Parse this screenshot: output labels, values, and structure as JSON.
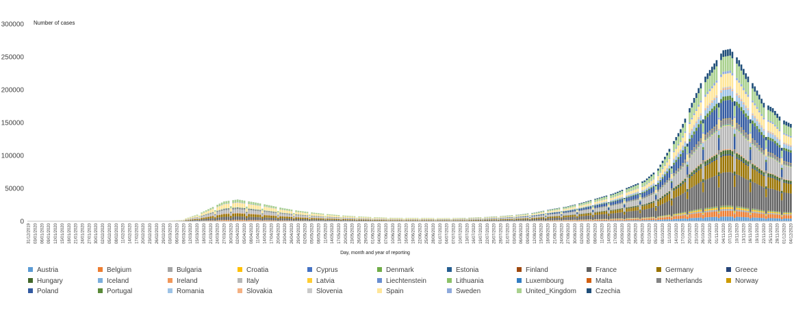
{
  "chart_data": {
    "type": "bar",
    "stacked": true,
    "ylabel": "Number of cases",
    "xlabel": "Day, month and year of reporting",
    "ylim": [
      0,
      300000
    ],
    "yticks": [
      0,
      50000,
      100000,
      150000,
      200000,
      250000,
      300000
    ],
    "x_start": "31/12/2019",
    "x_end": "04/12/2020",
    "tick_interval_days": 3,
    "grid": false,
    "legend_position": "bottom",
    "weekly_dip_factor": 0.72,
    "total_curve": [
      [
        "31/12/2019",
        0
      ],
      [
        "29/02/2020",
        200
      ],
      [
        "08/03/2020",
        2000
      ],
      [
        "15/03/2020",
        10000
      ],
      [
        "21/03/2020",
        20000
      ],
      [
        "27/03/2020",
        30000
      ],
      [
        "02/04/2020",
        33000
      ],
      [
        "09/04/2020",
        29000
      ],
      [
        "15/04/2020",
        25000
      ],
      [
        "22/04/2020",
        20000
      ],
      [
        "29/04/2020",
        16000
      ],
      [
        "06/05/2020",
        13000
      ],
      [
        "13/05/2020",
        10500
      ],
      [
        "20/05/2020",
        8500
      ],
      [
        "27/05/2020",
        7000
      ],
      [
        "03/06/2020",
        6000
      ],
      [
        "10/06/2020",
        5200
      ],
      [
        "17/06/2020",
        5000
      ],
      [
        "24/06/2020",
        5000
      ],
      [
        "01/07/2020",
        4600
      ],
      [
        "08/07/2020",
        4800
      ],
      [
        "15/07/2020",
        5500
      ],
      [
        "22/07/2020",
        6500
      ],
      [
        "29/07/2020",
        8000
      ],
      [
        "05/08/2020",
        10000
      ],
      [
        "12/08/2020",
        13000
      ],
      [
        "19/08/2020",
        18000
      ],
      [
        "26/08/2020",
        22000
      ],
      [
        "02/09/2020",
        28000
      ],
      [
        "09/09/2020",
        35000
      ],
      [
        "16/09/2020",
        42000
      ],
      [
        "23/09/2020",
        52000
      ],
      [
        "30/09/2020",
        62000
      ],
      [
        "06/10/2020",
        80000
      ],
      [
        "11/10/2020",
        110000
      ],
      [
        "16/10/2020",
        140000
      ],
      [
        "21/10/2020",
        180000
      ],
      [
        "25/10/2020",
        210000
      ],
      [
        "30/10/2020",
        235000
      ],
      [
        "04/11/2020",
        260000
      ],
      [
        "07/11/2020",
        262000
      ],
      [
        "11/11/2020",
        245000
      ],
      [
        "14/11/2020",
        225000
      ],
      [
        "18/11/2020",
        205000
      ],
      [
        "22/11/2020",
        180000
      ],
      [
        "26/11/2020",
        172000
      ],
      [
        "30/11/2020",
        155000
      ],
      [
        "04/12/2020",
        148000
      ]
    ],
    "series": [
      {
        "name": "Austria",
        "color": "#5b9bd5",
        "spring": 0.012,
        "autumn": 0.028
      },
      {
        "name": "Belgium",
        "color": "#ed7d31",
        "spring": 0.04,
        "autumn": 0.035
      },
      {
        "name": "Bulgaria",
        "color": "#a5a5a5",
        "spring": 0.002,
        "autumn": 0.012
      },
      {
        "name": "Croatia",
        "color": "#ffc000",
        "spring": 0.001,
        "autumn": 0.01
      },
      {
        "name": "Cyprus",
        "color": "#4472c4",
        "spring": 0.001,
        "autumn": 0.002
      },
      {
        "name": "Denmark",
        "color": "#70ad47",
        "spring": 0.008,
        "autumn": 0.006
      },
      {
        "name": "Estonia",
        "color": "#255e91",
        "spring": 0.001,
        "autumn": 0.001
      },
      {
        "name": "Finland",
        "color": "#9e480e",
        "spring": 0.004,
        "autumn": 0.002
      },
      {
        "name": "France",
        "color": "#636363",
        "spring": 0.16,
        "autumn": 0.2
      },
      {
        "name": "Germany",
        "color": "#997300",
        "spring": 0.14,
        "autumn": 0.1
      },
      {
        "name": "Greece",
        "color": "#264478",
        "spring": 0.003,
        "autumn": 0.008
      },
      {
        "name": "Hungary",
        "color": "#43682b",
        "spring": 0.002,
        "autumn": 0.025
      },
      {
        "name": "Iceland",
        "color": "#7cafdd",
        "spring": 0.001,
        "autumn": 0.001
      },
      {
        "name": "Ireland",
        "color": "#f1975a",
        "spring": 0.02,
        "autumn": 0.005
      },
      {
        "name": "Italy",
        "color": "#b7b7b7",
        "spring": 0.17,
        "autumn": 0.14
      },
      {
        "name": "Latvia",
        "color": "#ffcd33",
        "spring": 0.001,
        "autumn": 0.002
      },
      {
        "name": "Liechtenstein",
        "color": "#698ed0",
        "spring": 0.0005,
        "autumn": 0.0005
      },
      {
        "name": "Lithuania",
        "color": "#8cc168",
        "spring": 0.002,
        "autumn": 0.006
      },
      {
        "name": "Luxembourg",
        "color": "#327dc2",
        "spring": 0.003,
        "autumn": 0.003
      },
      {
        "name": "Malta",
        "color": "#d26012",
        "spring": 0.001,
        "autumn": 0.001
      },
      {
        "name": "Netherlands",
        "color": "#848484",
        "spring": 0.04,
        "autumn": 0.03
      },
      {
        "name": "Norway",
        "color": "#cc9a00",
        "spring": 0.006,
        "autumn": 0.003
      },
      {
        "name": "Poland",
        "color": "#335aa1",
        "spring": 0.015,
        "autumn": 0.11
      },
      {
        "name": "Portugal",
        "color": "#5a8a39",
        "spring": 0.02,
        "autumn": 0.025
      },
      {
        "name": "Romania",
        "color": "#9dc3e6",
        "spring": 0.01,
        "autumn": 0.04
      },
      {
        "name": "Slovakia",
        "color": "#f4b183",
        "spring": 0.001,
        "autumn": 0.008
      },
      {
        "name": "Slovenia",
        "color": "#c9c9c9",
        "spring": 0.001,
        "autumn": 0.008
      },
      {
        "name": "Spain",
        "color": "#ffe699",
        "spring": 0.22,
        "autumn": 0.08
      },
      {
        "name": "Sweden",
        "color": "#8faadc",
        "spring": 0.02,
        "autumn": 0.015
      },
      {
        "name": "United_Kingdom",
        "color": "#a9d18e",
        "spring": 0.12,
        "autumn": 0.09
      },
      {
        "name": "Czechia",
        "color": "#1f4e79",
        "spring": 0.003,
        "autumn": 0.04
      }
    ]
  }
}
